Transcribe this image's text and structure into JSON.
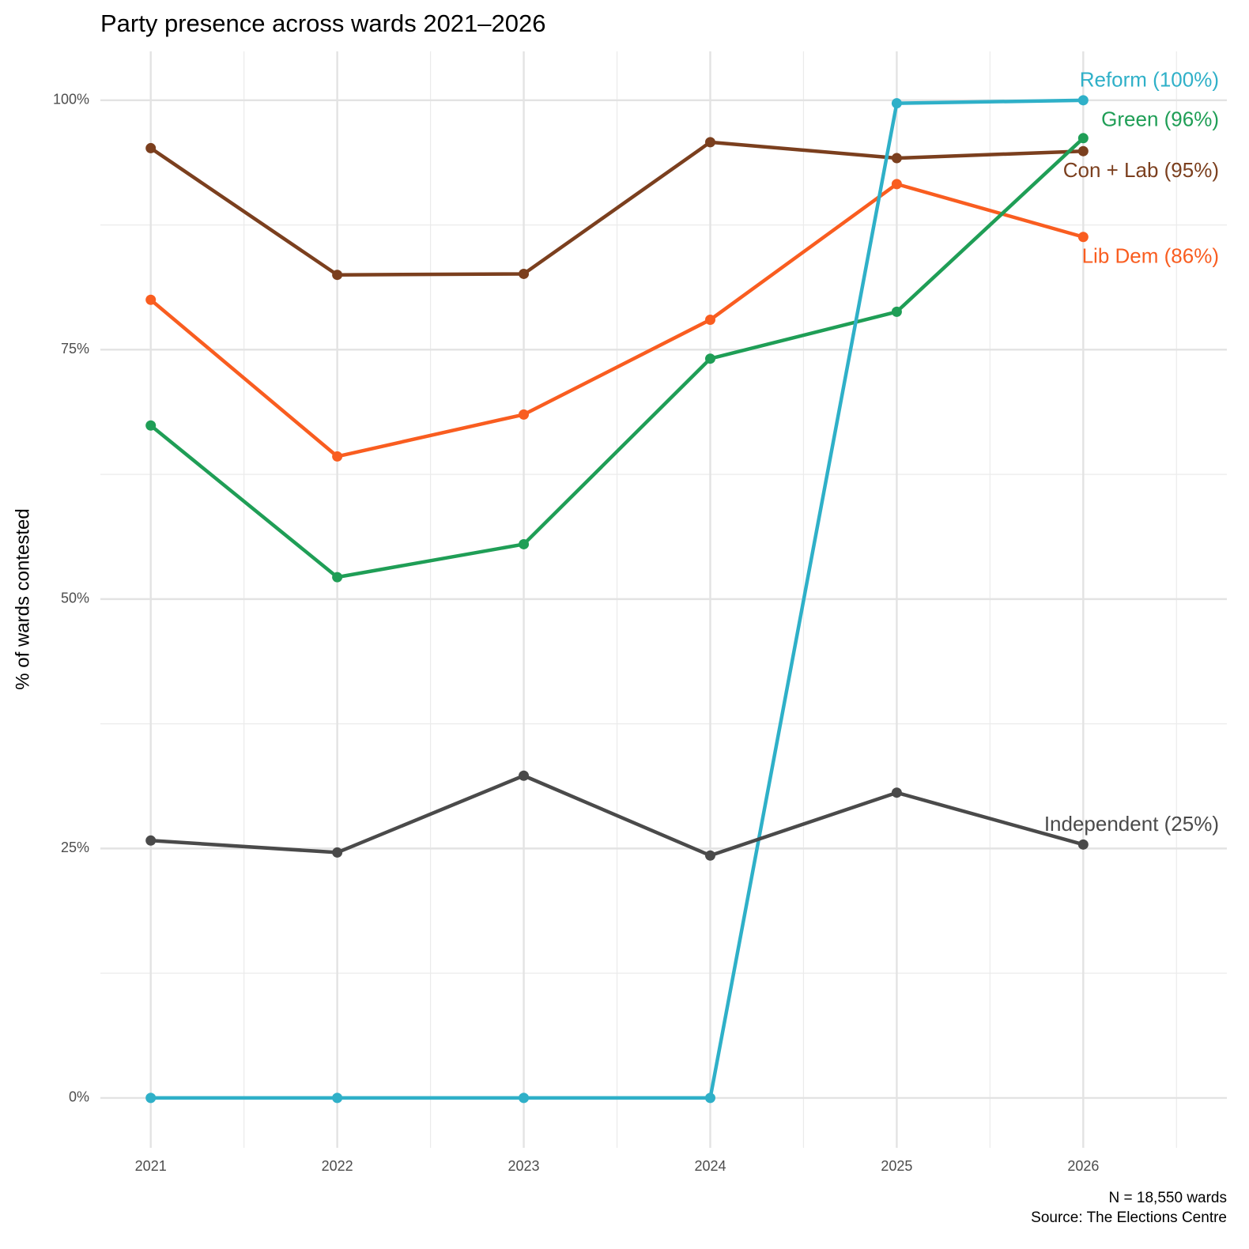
{
  "chart_data": {
    "type": "line",
    "title": "Party presence across wards 2021–2026",
    "y_label": "% of wards contested",
    "caption": [
      "N = 18,550 wards",
      "Source: The Elections Centre"
    ],
    "x": [
      2021,
      2022,
      2023,
      2024,
      2025,
      2026
    ],
    "xlim": [
      2020.73,
      2026.77
    ],
    "xticks": [
      2021,
      2022,
      2023,
      2024,
      2025,
      2026
    ],
    "ylim": [
      -5,
      104.9
    ],
    "yticks": [
      {
        "value": 0,
        "label": "0%"
      },
      {
        "value": 25,
        "label": "25%"
      },
      {
        "value": 50,
        "label": "50%"
      },
      {
        "value": 75,
        "label": "75%"
      },
      {
        "value": 100,
        "label": "100%"
      }
    ],
    "grid": true,
    "series": [
      {
        "name": "Con + Lab (95%)",
        "color": "#7b3f1e",
        "values": [
          95.2,
          82.5,
          82.6,
          95.8,
          94.2,
          94.9
        ]
      },
      {
        "name": "Lib Dem (86%)",
        "color": "#f95d20",
        "values": [
          80.0,
          64.3,
          68.5,
          78.0,
          91.6,
          86.3
        ]
      },
      {
        "name": "Green (96%)",
        "color": "#1f9e56",
        "values": [
          67.4,
          52.2,
          55.5,
          74.1,
          78.8,
          96.2
        ]
      },
      {
        "name": "Reform (100%)",
        "color": "#2fb0c8",
        "values": [
          0,
          0,
          0,
          0,
          99.7,
          100
        ]
      },
      {
        "name": "Independent (25%)",
        "color": "#4a4a4a",
        "values": [
          25.8,
          24.6,
          32.3,
          24.3,
          30.6,
          25.4
        ]
      }
    ]
  }
}
